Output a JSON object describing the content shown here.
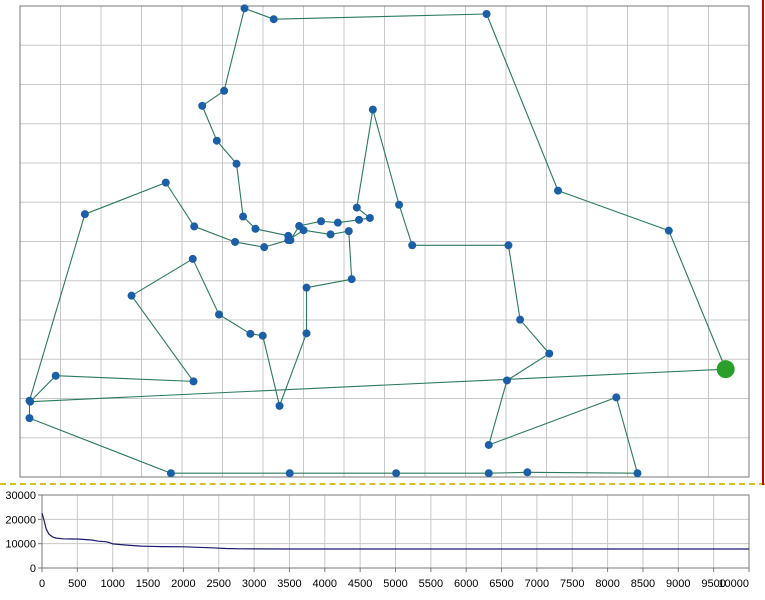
{
  "colors": {
    "grid": "#c8c8c8",
    "frame": "#7a7a7a",
    "route": "#2a7a5e",
    "city": "#1b5fa8",
    "depot": "#2aa02a",
    "cost_line": "#1a1a70",
    "splitter": "#d8c020",
    "side_border": "#c00000"
  },
  "chart_data": [
    {
      "type": "scatter",
      "role": "tsp-route",
      "grid": true,
      "xlim": [
        0,
        10000
      ],
      "ylim": [
        0,
        10000
      ],
      "depot": {
        "x": 9680,
        "y": 2290
      },
      "route": [
        [
          9680,
          2290
        ],
        [
          8900,
          5230
        ],
        [
          7380,
          6080
        ],
        [
          6400,
          9830
        ],
        [
          3480,
          9720
        ],
        [
          3080,
          9950
        ],
        [
          2800,
          8200
        ],
        [
          2500,
          7880
        ],
        [
          2700,
          7140
        ],
        [
          2970,
          6650
        ],
        [
          3060,
          5530
        ],
        [
          3230,
          5270
        ],
        [
          3680,
          5120
        ],
        [
          3710,
          5030
        ],
        [
          3830,
          5330
        ],
        [
          4130,
          5430
        ],
        [
          4360,
          5400
        ],
        [
          4650,
          5460
        ],
        [
          4800,
          5500
        ],
        [
          4620,
          5720
        ],
        [
          4840,
          7800
        ],
        [
          5200,
          5780
        ],
        [
          5380,
          4920
        ],
        [
          6700,
          4920
        ],
        [
          6860,
          3340
        ],
        [
          7260,
          2620
        ],
        [
          6680,
          2050
        ],
        [
          6430,
          680
        ],
        [
          8180,
          1690
        ],
        [
          8470,
          80
        ],
        [
          6960,
          100
        ],
        [
          6430,
          80
        ],
        [
          5160,
          80
        ],
        [
          3700,
          80
        ],
        [
          2070,
          80
        ],
        [
          130,
          1250
        ],
        [
          130,
          1620
        ],
        [
          890,
          5580
        ],
        [
          2000,
          6250
        ],
        [
          2390,
          5320
        ],
        [
          2950,
          4990
        ],
        [
          3350,
          4880
        ],
        [
          3680,
          5030
        ],
        [
          3890,
          5240
        ],
        [
          4260,
          5150
        ],
        [
          4510,
          5220
        ],
        [
          4550,
          4200
        ],
        [
          3930,
          4020
        ],
        [
          3930,
          3050
        ],
        [
          3560,
          1510
        ],
        [
          3330,
          3000
        ],
        [
          3160,
          3040
        ],
        [
          2730,
          3450
        ],
        [
          2370,
          4630
        ],
        [
          1530,
          3850
        ],
        [
          2380,
          2030
        ],
        [
          490,
          2150
        ],
        [
          140,
          1600
        ]
      ],
      "tick_labels": []
    },
    {
      "type": "line",
      "role": "cost-history",
      "grid": true,
      "xlim": [
        0,
        10000
      ],
      "ylim": [
        0,
        30000
      ],
      "x_ticks": [
        "0",
        "500",
        "1000",
        "1500",
        "2000",
        "2500",
        "3000",
        "3500",
        "4000",
        "4500",
        "5000",
        "5500",
        "6000",
        "6500",
        "7000",
        "7500",
        "8000",
        "8500",
        "9000",
        "9500",
        "10000"
      ],
      "y_ticks": [
        "0",
        "10000",
        "20000",
        "30000"
      ],
      "series": [
        {
          "x": [
            0,
            30,
            60,
            100,
            150,
            200,
            300,
            400,
            500,
            600,
            700,
            800,
            900,
            950,
            1000,
            1200,
            1400,
            1500,
            1700,
            2000,
            2200,
            2400,
            2600,
            2800,
            3000,
            3500,
            4000,
            5000,
            6000,
            7000,
            8000,
            9000,
            10000
          ],
          "y": [
            22600,
            19500,
            16000,
            13800,
            12800,
            12300,
            12000,
            11900,
            11900,
            11700,
            11500,
            11000,
            10800,
            10500,
            9900,
            9400,
            9000,
            8900,
            8800,
            8700,
            8500,
            8300,
            8000,
            7900,
            7850,
            7800,
            7800,
            7800,
            7800,
            7800,
            7800,
            7800,
            7800
          ]
        }
      ]
    }
  ]
}
